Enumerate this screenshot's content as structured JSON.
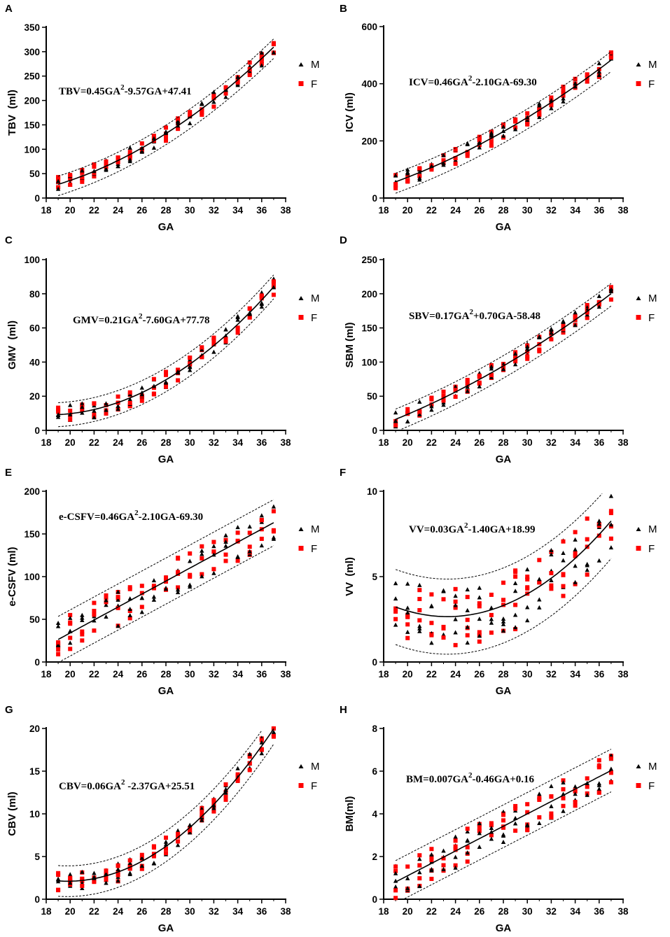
{
  "colors": {
    "male": "#000000",
    "female": "#ff0000",
    "axis": "#000000"
  },
  "chart_data": [
    {
      "type": "scatter",
      "panel": "A",
      "title": "",
      "xlabel": "GA",
      "ylabel": "TBV  (ml)",
      "xlim": [
        18,
        38
      ],
      "ylim": [
        0,
        350
      ],
      "xticks": [
        18,
        20,
        22,
        24,
        26,
        28,
        30,
        32,
        34,
        36,
        38
      ],
      "yticks": [
        0,
        50,
        100,
        150,
        200,
        250,
        300,
        350
      ],
      "equation": {
        "lhs": "TBV=0.45GA",
        "exp": "2",
        "rhs": "-9.57GA+47.41"
      },
      "fit": {
        "a": 0.45,
        "b": -9.57,
        "c": 47.41
      },
      "band": {
        "lower": -23,
        "upper": 17
      },
      "scatter_spread": 30,
      "legend": [
        "M",
        "F"
      ]
    },
    {
      "type": "scatter",
      "panel": "B",
      "title": "",
      "xlabel": "GA",
      "ylabel": "ICV (ml)",
      "xlim": [
        18,
        38
      ],
      "ylim": [
        0,
        600
      ],
      "xticks": [
        18,
        20,
        22,
        24,
        26,
        28,
        30,
        32,
        34,
        36,
        38
      ],
      "yticks": [
        0,
        200,
        400,
        600
      ],
      "equation": {
        "lhs": "ICV=0.46GA",
        "exp": "2",
        "rhs": "-2.10GA-69.30"
      },
      "fit": {
        "a": 0.46,
        "b": -2.1,
        "c": -69.3
      },
      "band": {
        "lower": -40,
        "upper": 30
      },
      "scatter_spread": 55,
      "legend": [
        "M",
        "F"
      ]
    },
    {
      "type": "scatter",
      "panel": "C",
      "title": "",
      "xlabel": "GA",
      "ylabel": "GMV  (ml)",
      "xlim": [
        18,
        38
      ],
      "ylim": [
        0,
        100
      ],
      "xticks": [
        18,
        20,
        22,
        24,
        26,
        28,
        30,
        32,
        34,
        36,
        38
      ],
      "yticks": [
        0,
        20,
        40,
        60,
        80,
        100
      ],
      "equation": {
        "lhs": "GMV=0.21GA",
        "exp": "2",
        "rhs": "-7.60GA+77.78"
      },
      "fit": {
        "a": 0.21,
        "b": -7.6,
        "c": 77.78
      },
      "band": {
        "lower": -7,
        "upper": 7
      },
      "scatter_spread": 10,
      "legend": [
        "M",
        "F"
      ]
    },
    {
      "type": "scatter",
      "panel": "D",
      "title": "",
      "xlabel": "GA",
      "ylabel": "SBM (ml)",
      "xlim": [
        18,
        38
      ],
      "ylim": [
        0,
        250
      ],
      "xticks": [
        18,
        20,
        22,
        24,
        26,
        28,
        30,
        32,
        34,
        36,
        38
      ],
      "yticks": [
        0,
        50,
        100,
        150,
        200,
        250
      ],
      "equation": {
        "lhs": "SBV=0.17GA",
        "exp": "2",
        "rhs": "+0.70GA-58.48"
      },
      "fit": {
        "a": 0.17,
        "b": 0.7,
        "c": -58.48
      },
      "band": {
        "lower": -18,
        "upper": 15
      },
      "scatter_spread": 22,
      "legend": [
        "M",
        "F"
      ]
    },
    {
      "type": "scatter",
      "panel": "E",
      "title": "",
      "xlabel": "GA",
      "ylabel": "e-CSFV (ml)",
      "xlim": [
        18,
        38
      ],
      "ylim": [
        0,
        200
      ],
      "xticks": [
        18,
        20,
        22,
        24,
        26,
        28,
        30,
        32,
        34,
        36,
        38
      ],
      "yticks": [
        0,
        50,
        100,
        150,
        200
      ],
      "equation": {
        "lhs": "e-CSFV=0.46GA",
        "exp": "2",
        "rhs": "-2.10GA-69.30"
      },
      "linear_fit": {
        "slope": 7.6,
        "intercept": -118
      },
      "band": {
        "lower": -27,
        "upper": 27
      },
      "scatter_spread": 45,
      "legend": [
        "M",
        "F"
      ]
    },
    {
      "type": "scatter",
      "panel": "F",
      "title": "",
      "xlabel": "GA",
      "ylabel": "VV  (ml)",
      "xlim": [
        18,
        38
      ],
      "ylim": [
        0,
        10
      ],
      "xticks": [
        18,
        20,
        22,
        24,
        26,
        28,
        30,
        32,
        34,
        36,
        38
      ],
      "yticks": [
        0,
        5,
        10
      ],
      "equation": {
        "lhs": "VV=0.03GA",
        "exp": "2",
        "rhs": "-1.40GA+18.99"
      },
      "fit": {
        "a": 0.03,
        "b": -1.4,
        "c": 18.99
      },
      "band": {
        "lower": -2.2,
        "upper": 2.2
      },
      "scatter_spread": 3.5,
      "legend": [
        "M",
        "F"
      ]
    },
    {
      "type": "scatter",
      "panel": "G",
      "title": "",
      "xlabel": "GA",
      "ylabel": "CBV (ml)",
      "xlim": [
        18,
        38
      ],
      "ylim": [
        0,
        20
      ],
      "xticks": [
        18,
        20,
        22,
        24,
        26,
        28,
        30,
        32,
        34,
        36,
        38
      ],
      "yticks": [
        0,
        5,
        10,
        15,
        20
      ],
      "equation": {
        "lhs": "CBV=0.06GA",
        "exp": "2",
        "rhs": " -2.37GA+25.51"
      },
      "fit": {
        "a": 0.06,
        "b": -2.37,
        "c": 25.51
      },
      "band": {
        "lower": -1.8,
        "upper": 1.8
      },
      "scatter_spread": 2.2,
      "legend": [
        "M",
        "F"
      ]
    },
    {
      "type": "scatter",
      "panel": "H",
      "title": "",
      "xlabel": "GA",
      "ylabel": "BM(ml)",
      "xlim": [
        18,
        38
      ],
      "ylim": [
        0,
        8
      ],
      "xticks": [
        18,
        20,
        22,
        24,
        26,
        28,
        30,
        32,
        34,
        36,
        38
      ],
      "yticks": [
        0,
        2,
        4,
        6,
        8
      ],
      "equation": {
        "lhs": "BM=0.007GA",
        "exp": "2",
        "rhs": "-0.46GA+0.16"
      },
      "linear_fit": {
        "slope": 0.29,
        "intercept": -4.7
      },
      "band": {
        "lower": -1.0,
        "upper": 1.0
      },
      "scatter_spread": 1.6,
      "legend": [
        "M",
        "F"
      ]
    }
  ]
}
